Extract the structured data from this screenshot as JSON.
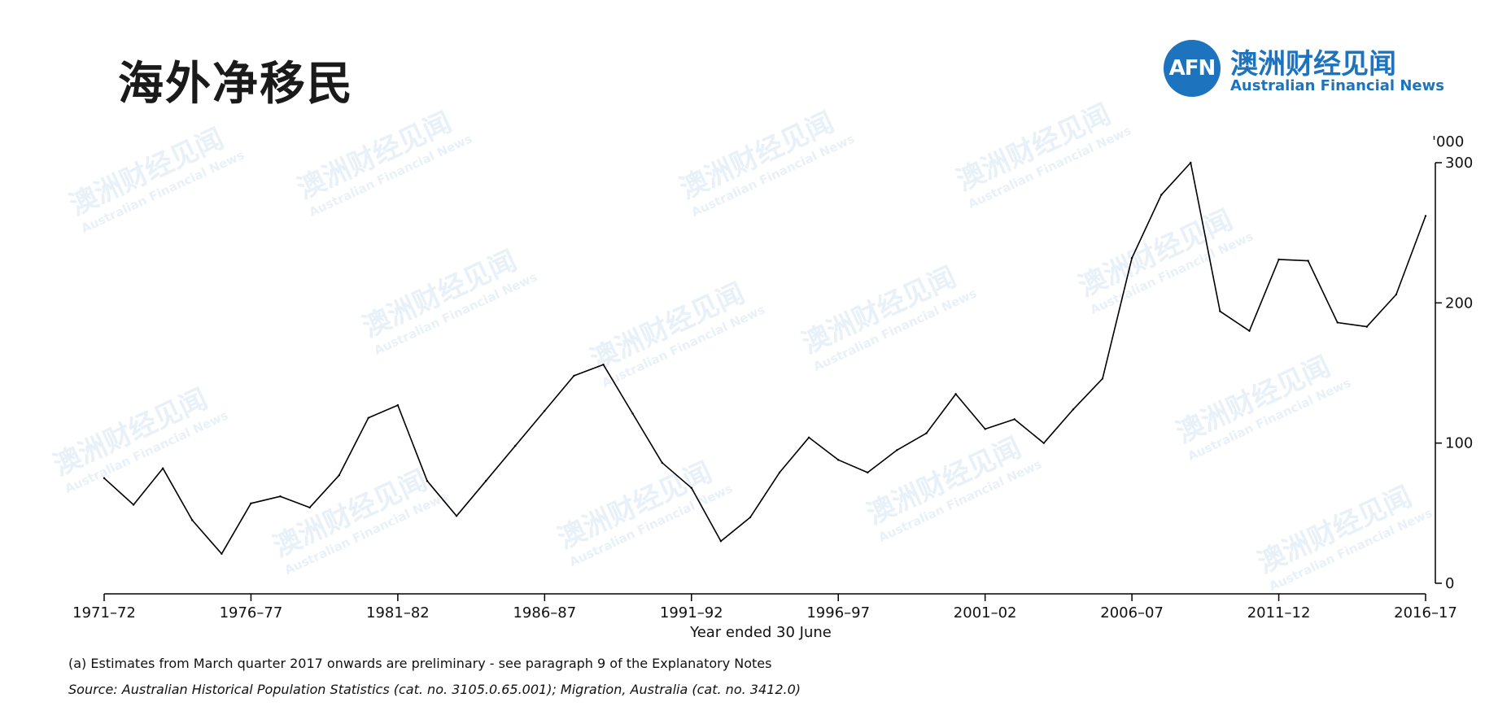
{
  "title": "海外净移民",
  "brand": {
    "mark": "AFN",
    "name_cn": "澳洲财经见闻",
    "name_en": "Australian Financial News",
    "color": "#1e73be"
  },
  "watermark": {
    "text_cn": "澳洲财经见闻",
    "text_en": "Australian Financial News"
  },
  "chart_data": {
    "type": "line",
    "unit_label": "'000",
    "xlabel": "Year ended 30 June",
    "ylim": [
      0,
      300
    ],
    "y_ticks": [
      0,
      100,
      200,
      300
    ],
    "y_axis_side": "right",
    "grid": false,
    "line_color": "#000000",
    "x_tick_labels": [
      "1971–72",
      "1976–77",
      "1981–82",
      "1986–87",
      "1991–92",
      "1996–97",
      "2001–02",
      "2006–07",
      "2011–12",
      "2016–17"
    ],
    "series": [
      {
        "x": [
          "1971–72",
          "1972–73",
          "1973–74",
          "1974–75",
          "1975–76",
          "1976–77",
          "1977–78",
          "1978–79",
          "1979–80",
          "1980–81",
          "1981–82",
          "1982–83",
          "1983–84",
          "1984–85",
          "1985–86",
          "1986–87",
          "1987–88",
          "1988–89",
          "1989–90",
          "1990–91",
          "1991–92",
          "1992–93",
          "1993–94",
          "1994–95",
          "1995–96",
          "1996–97",
          "1997–98",
          "1998–99",
          "1999–00",
          "2000–01",
          "2001–02",
          "2002–03",
          "2003–04",
          "2004–05",
          "2005–06",
          "2006–07",
          "2007–08",
          "2008–09",
          "2009–10",
          "2010–11",
          "2011–12",
          "2012–13",
          "2013–14",
          "2014–15",
          "2015–16",
          "2016–17"
        ],
        "values": [
          75,
          56,
          82,
          45,
          21,
          57,
          62,
          54,
          77,
          118,
          127,
          73,
          48,
          73,
          98,
          123,
          148,
          156,
          121,
          86,
          68,
          30,
          47,
          79,
          104,
          88,
          79,
          95,
          107,
          135,
          110,
          117,
          100,
          124,
          146,
          232,
          277,
          300,
          194,
          180,
          231,
          230,
          186,
          183,
          206,
          262
        ]
      }
    ]
  },
  "notes": {
    "footnote": "(a) Estimates from March quarter 2017 onwards are preliminary - see paragraph 9 of the Explanatory Notes",
    "source": "Source: Australian Historical Population Statistics (cat. no. 3105.0.65.001); Migration, Australia (cat. no. 3412.0)"
  }
}
